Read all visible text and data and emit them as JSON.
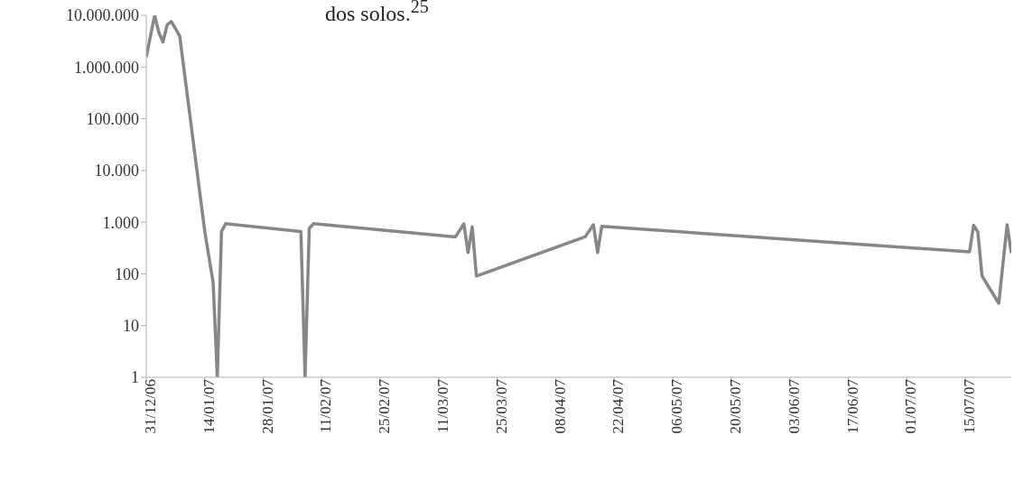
{
  "chart_data": {
    "type": "line",
    "annotations": [
      "dos solos.$^{25}$"
    ],
    "x": [
      "2006-12-31",
      "2007-01-02",
      "2007-01-03",
      "2007-01-04",
      "2007-01-05",
      "2007-01-06",
      "2007-01-08",
      "2007-01-14",
      "2007-01-16",
      "2007-01-17",
      "2007-01-18",
      "2007-01-19",
      "2007-02-06",
      "2007-02-07",
      "2007-02-08",
      "2007-02-09",
      "2007-03-15",
      "2007-03-17",
      "2007-03-18",
      "2007-03-19",
      "2007-03-20",
      "2007-04-15",
      "2007-04-17",
      "2007-04-18",
      "2007-04-19",
      "2007-07-16",
      "2007-07-17",
      "2007-07-18",
      "2007-07-19",
      "2007-07-23",
      "2007-07-25",
      "2007-07-26"
    ],
    "series": [
      {
        "color": "#87878a",
        "values": [
          1570000,
          10000000,
          4700000,
          3050000,
          6600000,
          7600000,
          4000000,
          660,
          68,
          1,
          660,
          935,
          660,
          1,
          760,
          935,
          520,
          927,
          260,
          810,
          91,
          520,
          890,
          260,
          830,
          267,
          870,
          645,
          91,
          27,
          890,
          253
        ]
      }
    ],
    "log": "y",
    "grid": false,
    "legend": false,
    "marker": "none",
    "line_style": "solid",
    "xlim": [
      "2006-12-31",
      "2007-07-26"
    ],
    "xticks": [
      {
        "value": "2006-12-31",
        "label": "31/12/06"
      },
      {
        "value": "2007-01-14",
        "label": "14/01/07"
      },
      {
        "value": "2007-01-28",
        "label": "28/01/07"
      },
      {
        "value": "2007-02-11",
        "label": "11/02/07"
      },
      {
        "value": "2007-02-25",
        "label": "25/02/07"
      },
      {
        "value": "2007-03-11",
        "label": "11/03/07"
      },
      {
        "value": "2007-03-25",
        "label": "25/03/07"
      },
      {
        "value": "2007-04-08",
        "label": "08/04/07"
      },
      {
        "value": "2007-04-22",
        "label": "22/04/07"
      },
      {
        "value": "2007-05-06",
        "label": "06/05/07"
      },
      {
        "value": "2007-05-20",
        "label": "20/05/07"
      },
      {
        "value": "2007-06-03",
        "label": "03/06/07"
      },
      {
        "value": "2007-06-17",
        "label": "17/06/07"
      },
      {
        "value": "2007-07-01",
        "label": "01/07/07"
      },
      {
        "value": "2007-07-15",
        "label": "15/07/07"
      }
    ],
    "ylim": [
      1,
      10000000
    ],
    "yticks": [
      1,
      10,
      100,
      {
        "value": 1000,
        "label": "1.000"
      },
      {
        "value": 10000,
        "label": "10.000"
      },
      {
        "value": 100000,
        "label": "100.000"
      },
      {
        "value": 1000000,
        "label": "1.000.000"
      },
      {
        "value": 10000000,
        "label": "10.000.000"
      }
    ]
  }
}
